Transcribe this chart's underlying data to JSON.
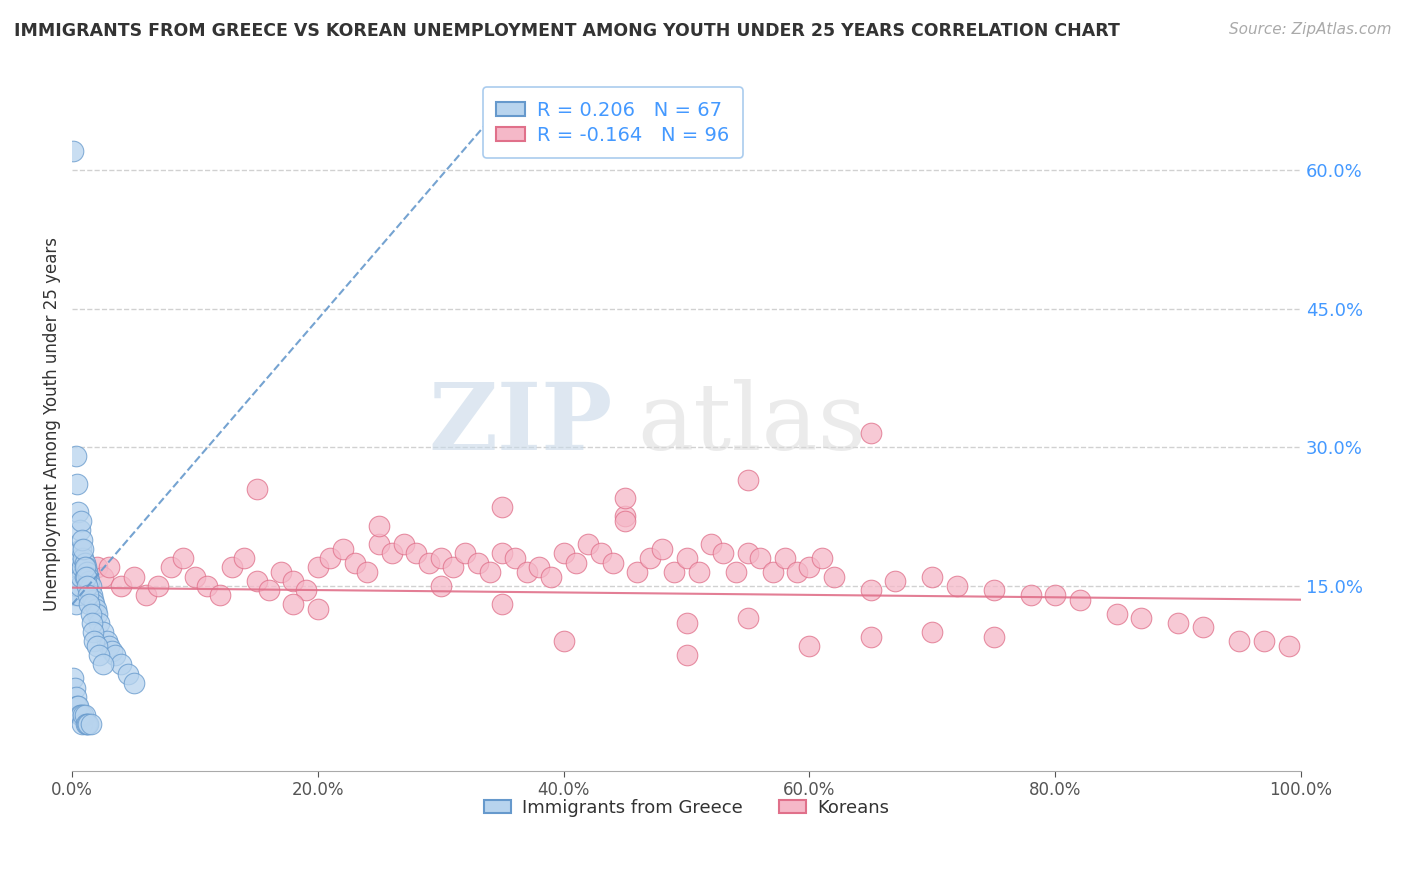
{
  "title": "IMMIGRANTS FROM GREECE VS KOREAN UNEMPLOYMENT AMONG YOUTH UNDER 25 YEARS CORRELATION CHART",
  "source": "Source: ZipAtlas.com",
  "ylabel": "Unemployment Among Youth under 25 years",
  "watermark_zip": "ZIP",
  "watermark_atlas": "atlas",
  "legend_entries": [
    {
      "label": "Immigrants from Greece",
      "R": 0.206,
      "N": 67,
      "color": "#b8d4ee",
      "edge_color": "#6699cc",
      "line_color": "#6699cc",
      "line_style": "--"
    },
    {
      "label": "Koreans",
      "R": -0.164,
      "N": 96,
      "color": "#f5b8c8",
      "edge_color": "#e0708a",
      "line_color": "#e0708a",
      "line_style": "-"
    }
  ],
  "xlim": [
    0.0,
    1.0
  ],
  "ylim": [
    -0.05,
    0.7
  ],
  "x_ticks": [
    0.0,
    0.2,
    0.4,
    0.6,
    0.8,
    1.0
  ],
  "y_ticks_right": [
    0.15,
    0.3,
    0.45,
    0.6
  ],
  "background": "#ffffff",
  "grid_color": "#cccccc",
  "blue_trend_x": [
    0.0,
    0.35
  ],
  "blue_trend_y": [
    0.13,
    0.67
  ],
  "pink_trend_x": [
    0.0,
    1.0
  ],
  "pink_trend_y": [
    0.148,
    0.135
  ],
  "blue_scatter_x": [
    0.001,
    0.001,
    0.002,
    0.002,
    0.003,
    0.003,
    0.003,
    0.004,
    0.004,
    0.005,
    0.005,
    0.005,
    0.006,
    0.006,
    0.006,
    0.007,
    0.007,
    0.007,
    0.008,
    0.008,
    0.009,
    0.009,
    0.01,
    0.01,
    0.01,
    0.011,
    0.011,
    0.012,
    0.012,
    0.013,
    0.013,
    0.014,
    0.015,
    0.015,
    0.016,
    0.017,
    0.018,
    0.019,
    0.02,
    0.022,
    0.025,
    0.028,
    0.03,
    0.032,
    0.035,
    0.04,
    0.045,
    0.05,
    0.003,
    0.004,
    0.005,
    0.006,
    0.007,
    0.008,
    0.009,
    0.01,
    0.011,
    0.012,
    0.013,
    0.014,
    0.015,
    0.016,
    0.017,
    0.018,
    0.02,
    0.022,
    0.025
  ],
  "blue_scatter_y": [
    0.62,
    0.05,
    0.14,
    0.04,
    0.16,
    0.13,
    0.03,
    0.15,
    0.02,
    0.17,
    0.14,
    0.02,
    0.18,
    0.15,
    0.01,
    0.19,
    0.16,
    0.01,
    0.17,
    0.0,
    0.18,
    0.01,
    0.175,
    0.16,
    0.01,
    0.17,
    0.0,
    0.165,
    0.0,
    0.16,
    0.0,
    0.155,
    0.15,
    0.0,
    0.14,
    0.135,
    0.13,
    0.125,
    0.12,
    0.11,
    0.1,
    0.09,
    0.085,
    0.08,
    0.075,
    0.065,
    0.055,
    0.045,
    0.29,
    0.26,
    0.23,
    0.21,
    0.22,
    0.2,
    0.19,
    0.17,
    0.16,
    0.15,
    0.14,
    0.13,
    0.12,
    0.11,
    0.1,
    0.09,
    0.085,
    0.075,
    0.065
  ],
  "pink_scatter_x": [
    0.02,
    0.025,
    0.03,
    0.04,
    0.05,
    0.06,
    0.07,
    0.08,
    0.09,
    0.1,
    0.11,
    0.12,
    0.13,
    0.14,
    0.15,
    0.16,
    0.17,
    0.18,
    0.19,
    0.2,
    0.21,
    0.22,
    0.23,
    0.24,
    0.25,
    0.26,
    0.27,
    0.28,
    0.29,
    0.3,
    0.31,
    0.32,
    0.33,
    0.34,
    0.35,
    0.36,
    0.37,
    0.38,
    0.39,
    0.4,
    0.41,
    0.42,
    0.43,
    0.44,
    0.45,
    0.46,
    0.47,
    0.48,
    0.49,
    0.5,
    0.51,
    0.52,
    0.53,
    0.54,
    0.55,
    0.56,
    0.57,
    0.58,
    0.59,
    0.6,
    0.61,
    0.62,
    0.65,
    0.67,
    0.7,
    0.72,
    0.75,
    0.78,
    0.8,
    0.82,
    0.85,
    0.87,
    0.9,
    0.92,
    0.95,
    0.97,
    0.99,
    0.15,
    0.25,
    0.35,
    0.45,
    0.55,
    0.65,
    0.4,
    0.6,
    0.2,
    0.3,
    0.5,
    0.7,
    0.35,
    0.55,
    0.18,
    0.45,
    0.65,
    0.5,
    0.75
  ],
  "pink_scatter_y": [
    0.17,
    0.16,
    0.17,
    0.15,
    0.16,
    0.14,
    0.15,
    0.17,
    0.18,
    0.16,
    0.15,
    0.14,
    0.17,
    0.18,
    0.155,
    0.145,
    0.165,
    0.155,
    0.145,
    0.17,
    0.18,
    0.19,
    0.175,
    0.165,
    0.195,
    0.185,
    0.195,
    0.185,
    0.175,
    0.18,
    0.17,
    0.185,
    0.175,
    0.165,
    0.185,
    0.18,
    0.165,
    0.17,
    0.16,
    0.185,
    0.175,
    0.195,
    0.185,
    0.175,
    0.225,
    0.165,
    0.18,
    0.19,
    0.165,
    0.18,
    0.165,
    0.195,
    0.185,
    0.165,
    0.185,
    0.18,
    0.165,
    0.18,
    0.165,
    0.17,
    0.18,
    0.16,
    0.145,
    0.155,
    0.16,
    0.15,
    0.145,
    0.14,
    0.14,
    0.135,
    0.12,
    0.115,
    0.11,
    0.105,
    0.09,
    0.09,
    0.085,
    0.255,
    0.215,
    0.235,
    0.245,
    0.265,
    0.315,
    0.09,
    0.085,
    0.125,
    0.15,
    0.075,
    0.1,
    0.13,
    0.115,
    0.13,
    0.22,
    0.095,
    0.11,
    0.095
  ]
}
